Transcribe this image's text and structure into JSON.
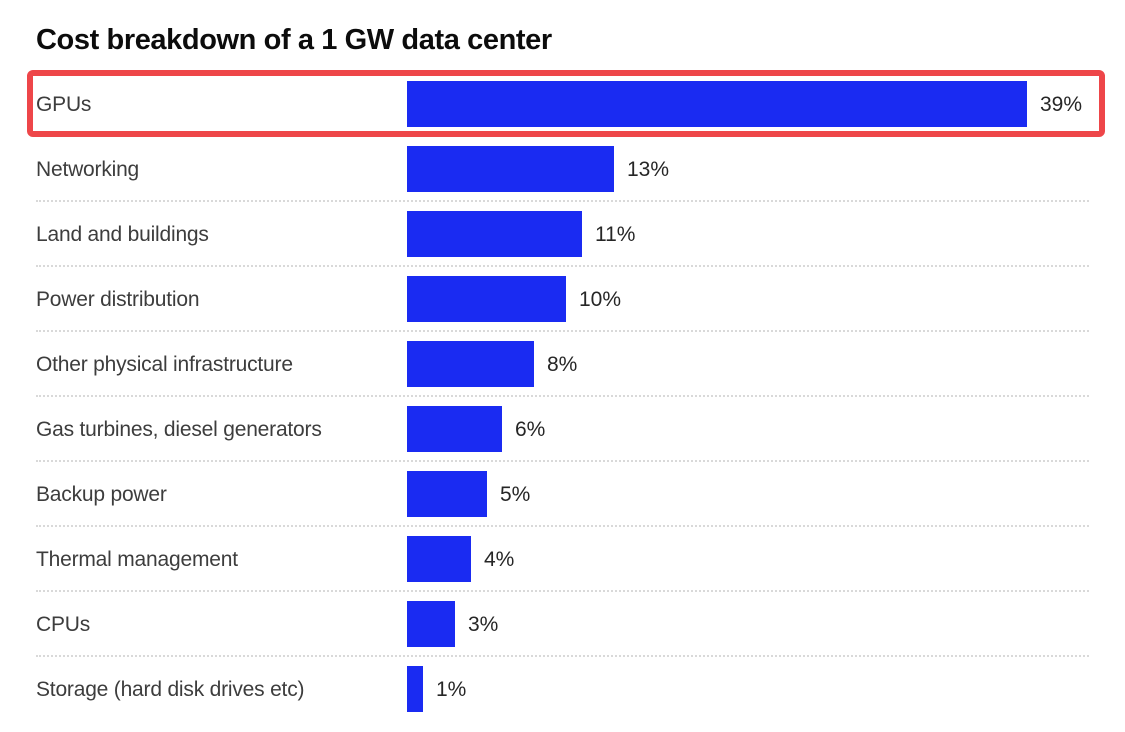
{
  "title": "Cost breakdown of a 1 GW data center",
  "chart_data": {
    "type": "bar",
    "orientation": "horizontal",
    "title": "Cost breakdown of a 1 GW data center",
    "categories": [
      "GPUs",
      "Networking",
      "Land and buildings",
      "Power distribution",
      "Other physical infrastructure",
      "Gas turbines, diesel generators",
      "Backup power",
      "Thermal management",
      "CPUs",
      "Storage (hard disk drives etc)"
    ],
    "values": [
      39,
      13,
      11,
      10,
      8,
      6,
      5,
      4,
      3,
      1
    ],
    "value_labels": [
      "39%",
      "13%",
      "11%",
      "10%",
      "8%",
      "6%",
      "5%",
      "4%",
      "3%",
      "1%"
    ],
    "unit": "%",
    "xlim": [
      0,
      40
    ],
    "grid": false,
    "legend": false,
    "bar_color": "#1a2bf2",
    "label_color": "#3d3d3d",
    "value_label_color": "#262626",
    "separator_style": "dotted",
    "highlight": {
      "category": "GPUs",
      "index": 0,
      "style": "outline-box",
      "color": "#ee4649"
    }
  }
}
